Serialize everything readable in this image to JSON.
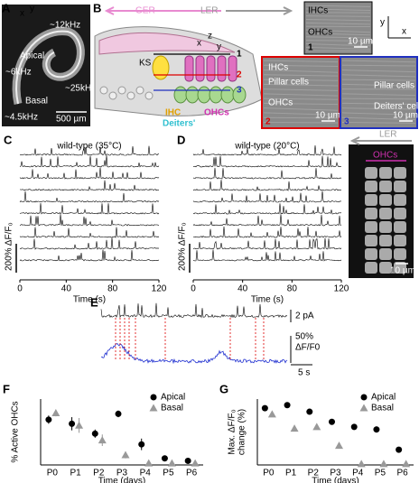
{
  "panels": {
    "A": {
      "label": "A",
      "axes": [
        "x",
        "y"
      ],
      "frequencies": [
        "~12kHz",
        "~6kHz",
        "~25kHz",
        "~4.5kHz"
      ],
      "regions": [
        "Apical",
        "Basal"
      ],
      "scale_bar": "500 µm"
    },
    "B": {
      "label": "B",
      "directions": [
        "GER",
        "LER"
      ],
      "axes": [
        "z",
        "x",
        "y"
      ],
      "structure": "KS",
      "planes": [
        "1",
        "2",
        "3"
      ],
      "cells": [
        "IHC",
        "OHCs",
        "Deiters'"
      ],
      "images": [
        {
          "labels": [
            "IHCs",
            "OHCs"
          ],
          "scale_bar": "10 µm",
          "number": "1",
          "axes": [
            "x",
            "y"
          ]
        },
        {
          "labels": [
            "IHCs",
            "Pillar cells",
            "OHCs"
          ],
          "scale_bar": "10 µm",
          "number": "2"
        },
        {
          "labels": [
            "Pillar cells",
            "Deiters' cells"
          ],
          "scale_bar": "10 µm",
          "number": "3"
        }
      ]
    },
    "C": {
      "label": "C",
      "title": "wild-type (35°C)",
      "ylabel": "200% ΔF/F₀",
      "xlabel": "Time (s)",
      "xlim": [
        0,
        120
      ],
      "xticks": [
        0,
        40,
        80,
        120
      ]
    },
    "D": {
      "label": "D",
      "title": "wild-type (20°C)",
      "ylabel": "200% ΔF/F₀",
      "xlabel": "Time (s)",
      "xlim": [
        0,
        120
      ],
      "xticks": [
        0,
        40,
        80,
        120
      ],
      "image_labels": [
        "LER",
        "OHCs"
      ],
      "scale_bar": "10 µm"
    },
    "E": {
      "label": "E",
      "scale_current": "2 pA",
      "scale_fluo": [
        "50%",
        "ΔF/F0"
      ],
      "scale_time": "5 s"
    }
  },
  "chart_data": [
    {
      "type": "scatter",
      "label": "F",
      "ylabel": [
        "% Active OHCs"
      ],
      "xlabel": "Time (days)",
      "categories": [
        "P0",
        "P1",
        "P2",
        "P3",
        "P4",
        "P5",
        "P6"
      ],
      "ylim": [
        0,
        80
      ],
      "legend": "upper right",
      "series": [
        {
          "name": "Apical",
          "color": "#000000",
          "marker": "circle",
          "values": [
            55,
            50,
            38,
            62,
            25,
            8,
            5
          ],
          "errors": [
            5,
            8,
            5,
            4,
            7,
            2,
            2
          ]
        },
        {
          "name": "Basal",
          "color": "#999999",
          "marker": "triangle",
          "values": [
            63,
            48,
            30,
            12,
            2,
            2,
            2
          ],
          "errors": [
            4,
            9,
            7,
            4,
            1,
            1,
            1
          ]
        }
      ]
    },
    {
      "type": "scatter",
      "label": "G",
      "ylabel": [
        "Max. ΔF/F₀",
        "change (%)"
      ],
      "xlabel": "Time (days)",
      "categories": [
        "P0",
        "P1",
        "P2",
        "P3",
        "P4",
        "P5",
        "P6"
      ],
      "ylim": [
        0,
        130
      ],
      "legend": "upper right",
      "series": [
        {
          "name": "Apical",
          "color": "#000000",
          "marker": "circle",
          "values": [
            112,
            118,
            105,
            85,
            75,
            70,
            30
          ],
          "errors": [
            4,
            4,
            4,
            3,
            4,
            6,
            5
          ]
        },
        {
          "name": "Basal",
          "color": "#999999",
          "marker": "triangle",
          "values": [
            100,
            72,
            75,
            38,
            2,
            2,
            2
          ],
          "errors": [
            4,
            3,
            3,
            3,
            1,
            1,
            1
          ]
        }
      ]
    }
  ]
}
